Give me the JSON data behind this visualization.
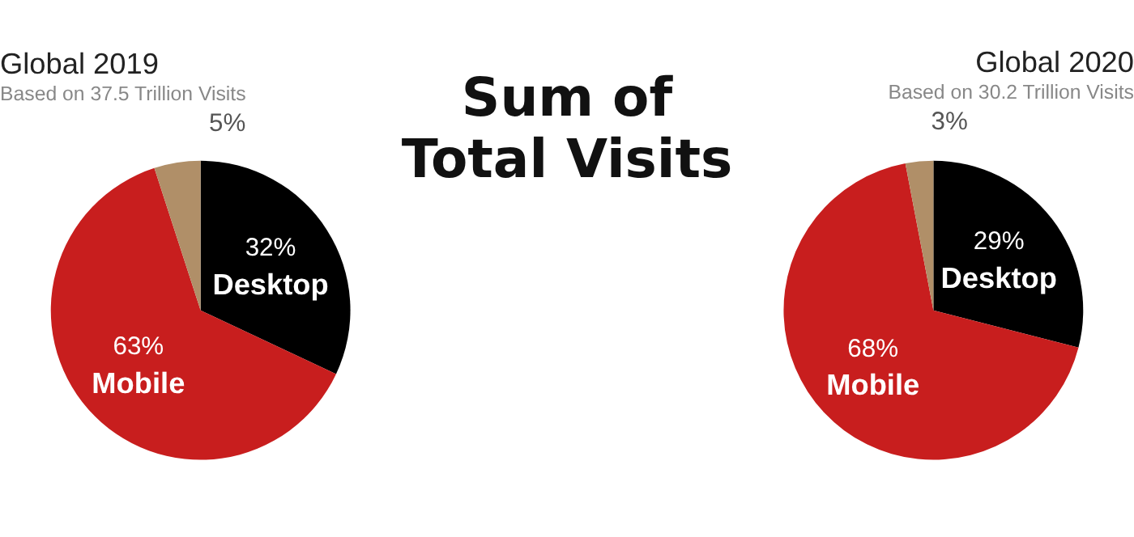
{
  "chart_data": [
    {
      "type": "pie",
      "title": "Global 2019",
      "subtitle": "Based on 37.5 Trillion Visits",
      "categories": [
        "Desktop",
        "Mobile",
        null
      ],
      "values": [
        32,
        63,
        5
      ],
      "colors": [
        "#000000",
        "#c81e1e",
        "#b08f68"
      ],
      "value_labels": [
        "32%",
        "63%",
        "5%"
      ]
    },
    {
      "type": "other",
      "title": "Sum of Total Visits"
    },
    {
      "type": "pie",
      "title": "Global 2020",
      "subtitle": "Based on 30.2 Trillion Visits",
      "categories": [
        "Desktop",
        "Mobile",
        null
      ],
      "values": [
        29,
        68,
        3
      ],
      "colors": [
        "#000000",
        "#c81e1e",
        "#b08f68"
      ],
      "value_labels": [
        "29%",
        "68%",
        "3%"
      ]
    }
  ]
}
